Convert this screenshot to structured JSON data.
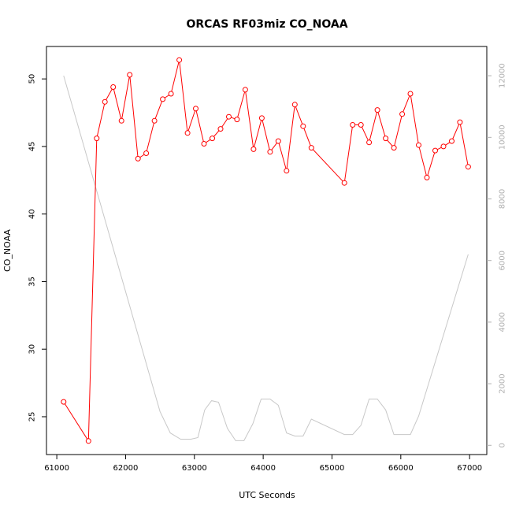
{
  "chart_data": {
    "type": "line",
    "title": "ORCAS RF03miz CO_NOAA",
    "xlabel": "UTC Seconds",
    "ylabel": "CO_NOAA",
    "xlim": [
      60850,
      67250
    ],
    "ylim": [
      22.2,
      52.4
    ],
    "y2lim": [
      -300,
      12950
    ],
    "x_ticks": [
      61000,
      62000,
      63000,
      64000,
      65000,
      66000,
      67000
    ],
    "y_ticks": [
      25,
      30,
      35,
      40,
      45,
      50
    ],
    "y2_ticks": [
      0,
      2000,
      4000,
      6000,
      8000,
      10000,
      12000
    ],
    "colors": {
      "primary": "#ff0000",
      "secondary": "#c8c8c8",
      "right_axis": "#b0b0b0"
    },
    "series": [
      {
        "axis": "left",
        "marker": "circle",
        "x": [
          61100,
          61460,
          61580,
          61700,
          61820,
          61940,
          62060,
          62180,
          62300,
          62420,
          62540,
          62660,
          62780,
          62900,
          63020,
          63140,
          63260,
          63380,
          63500,
          63620,
          63740,
          63860,
          63980,
          64100,
          64220,
          64340,
          64460,
          64580,
          64700,
          65180,
          65300,
          65420,
          65540,
          65660,
          65780,
          65900,
          66020,
          66140,
          66260,
          66380,
          66500,
          66620,
          66740,
          66860,
          66980
        ],
        "values": [
          26.1,
          23.2,
          45.6,
          48.3,
          49.4,
          46.9,
          50.3,
          44.1,
          44.5,
          46.9,
          48.5,
          48.9,
          51.4,
          46.0,
          47.8,
          45.2,
          45.6,
          46.3,
          47.2,
          47.0,
          49.2,
          44.8,
          47.1,
          44.6,
          45.4,
          43.2,
          48.1,
          46.5,
          44.9,
          42.3,
          46.6,
          46.6,
          45.3,
          47.7,
          45.6,
          44.9,
          47.4,
          48.9,
          45.1,
          42.7,
          44.7,
          45.0,
          45.4,
          46.8,
          43.5
        ]
      },
      {
        "axis": "right",
        "marker": "none",
        "x": [
          61100,
          62500,
          62650,
          62800,
          62950,
          63050,
          63150,
          63250,
          63350,
          63480,
          63600,
          63720,
          63850,
          63970,
          64100,
          64220,
          64340,
          64460,
          64580,
          64700,
          65180,
          65300,
          65420,
          65540,
          65660,
          65780,
          65900,
          66020,
          66140,
          66260,
          66980
        ],
        "values": [
          12000,
          1100,
          400,
          200,
          200,
          250,
          1150,
          1450,
          1400,
          550,
          150,
          150,
          700,
          1500,
          1500,
          1300,
          400,
          300,
          300,
          850,
          350,
          350,
          650,
          1500,
          1500,
          1150,
          350,
          350,
          350,
          950,
          6200
        ]
      }
    ]
  }
}
